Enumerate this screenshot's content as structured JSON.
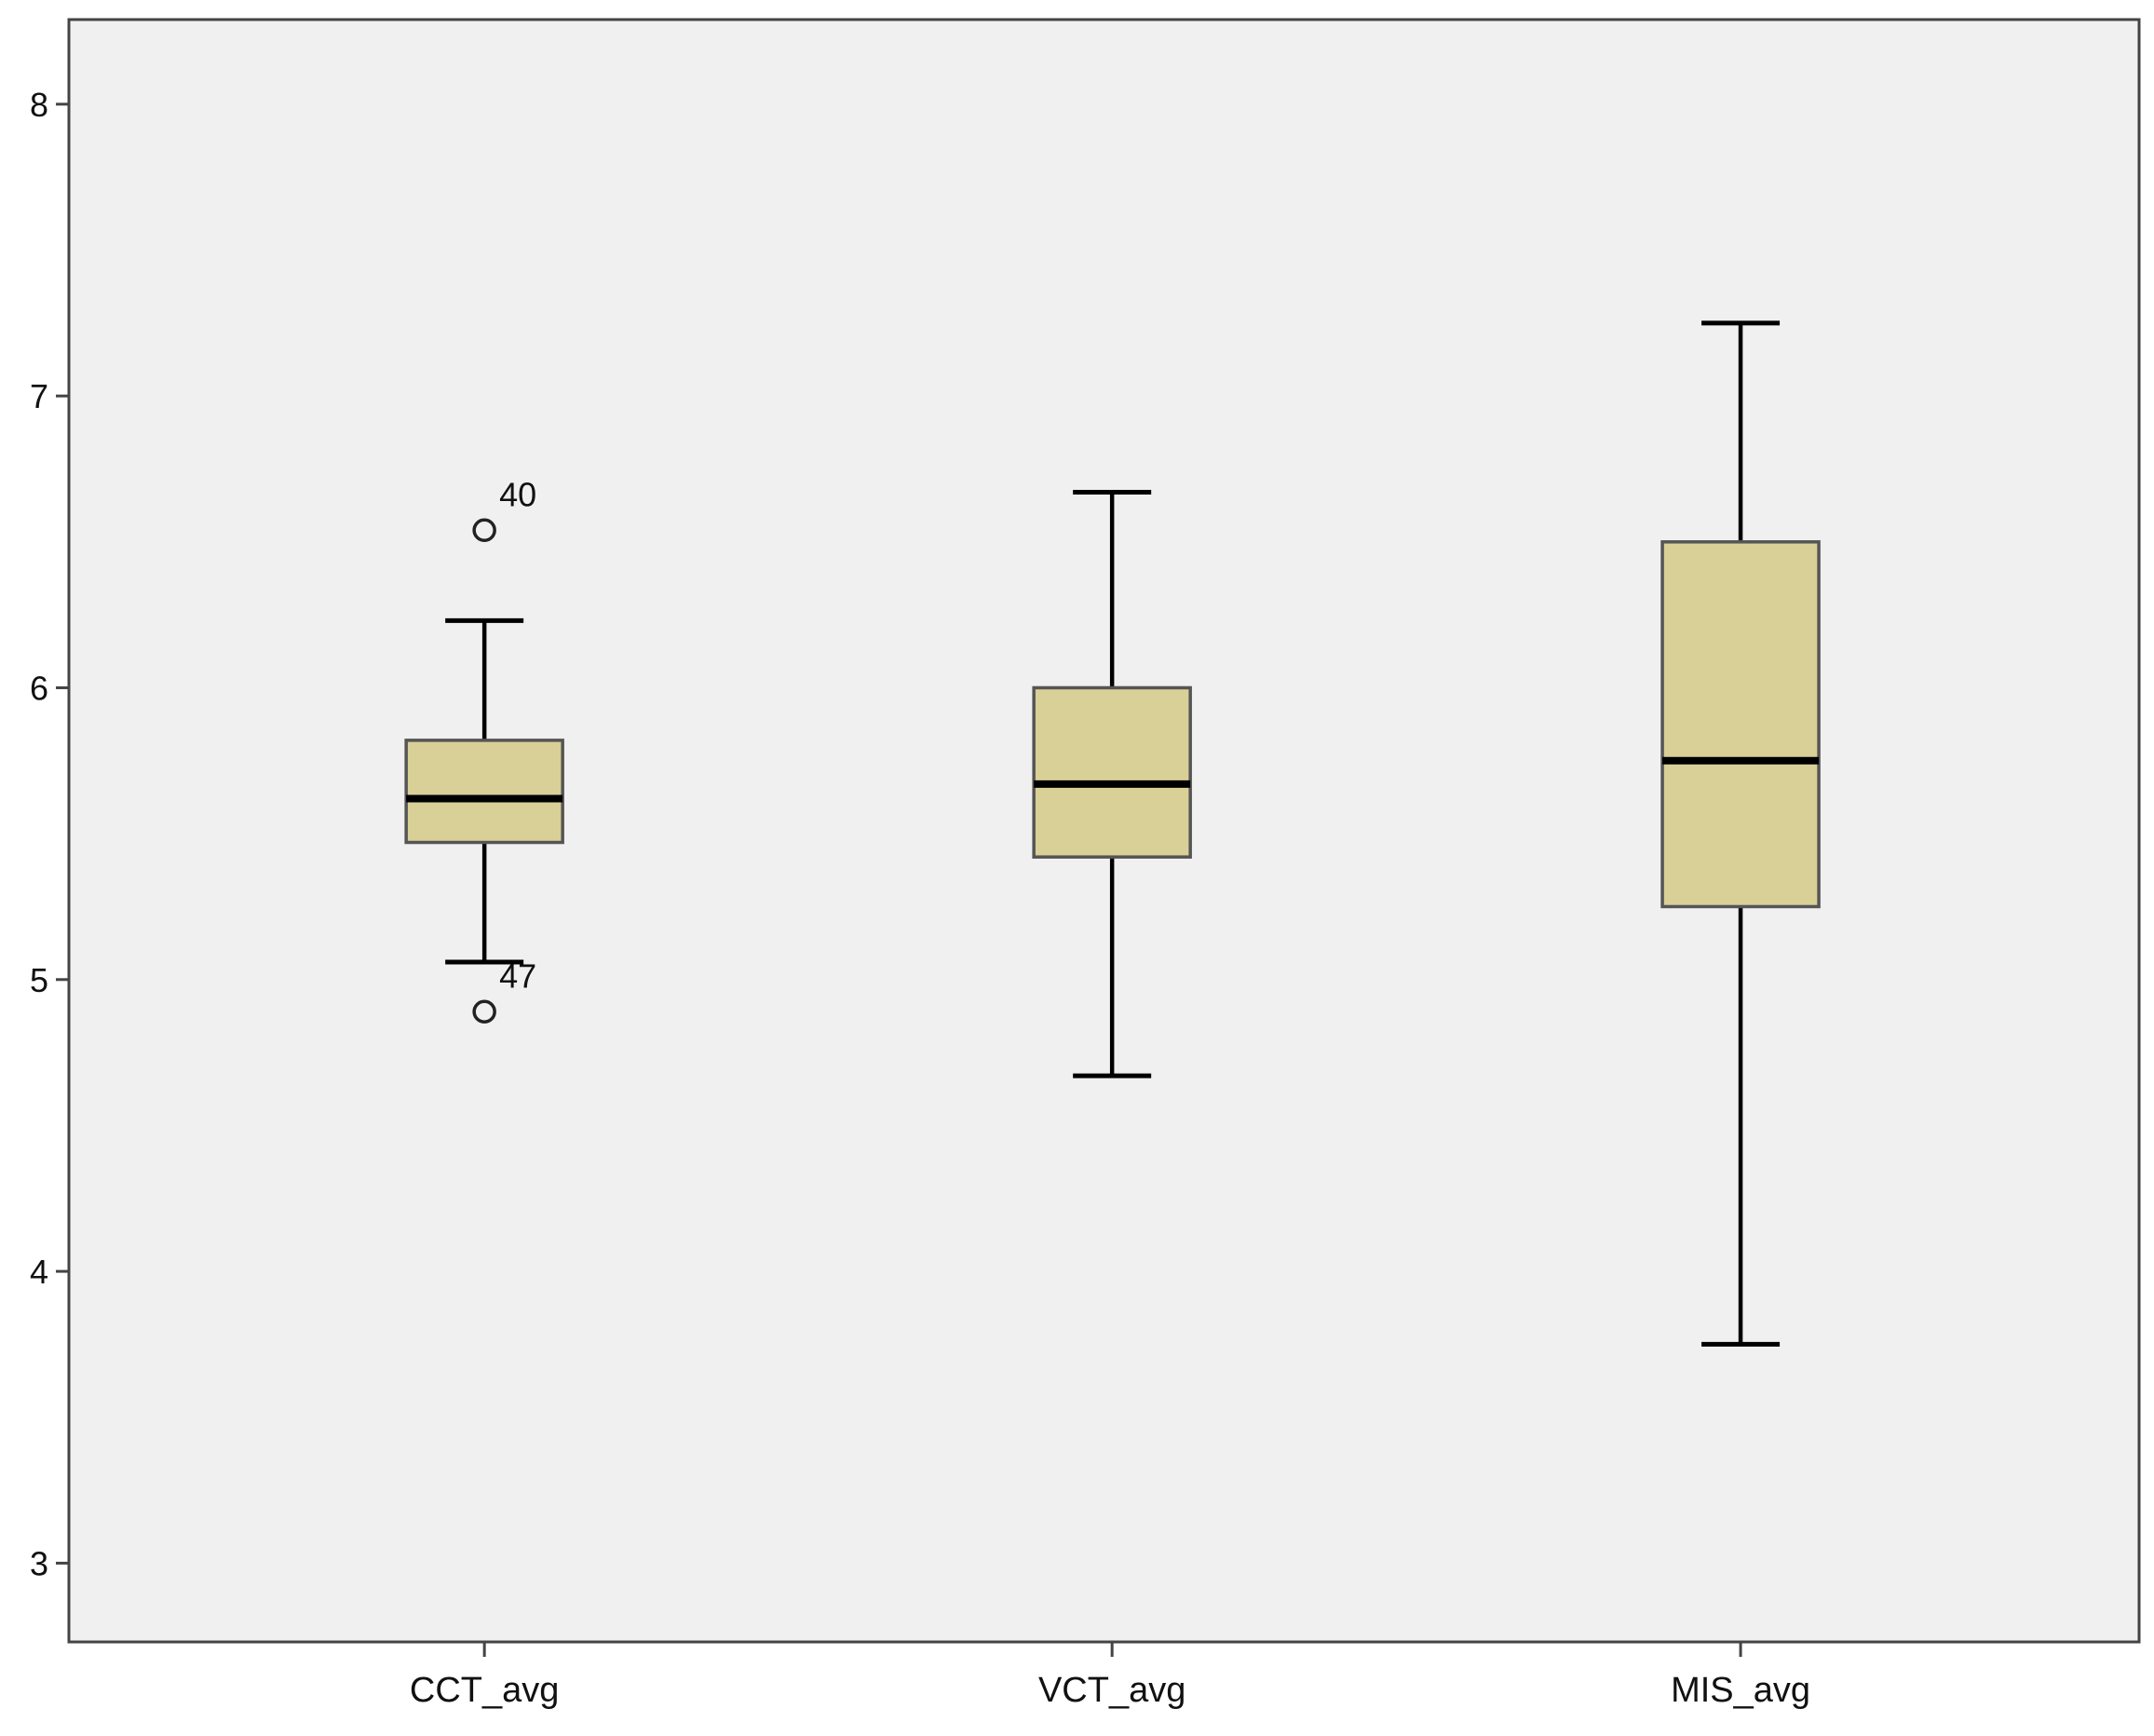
{
  "chart_data": {
    "type": "box",
    "title": "",
    "xlabel": "",
    "ylabel": "",
    "ylim": [
      2.73,
      8.29
    ],
    "y_ticks": [
      3,
      4,
      5,
      6,
      7,
      8
    ],
    "grid": false,
    "legend": "none",
    "colors": {
      "plot_background": "#f0f0f0",
      "box_fill": "#d8d097",
      "box_stroke": "#555555",
      "lines": "#000000",
      "frame": "#444444"
    },
    "categories": [
      "CCT_avg",
      "VCT_avg",
      "MIS_avg"
    ],
    "series": [
      {
        "category": "CCT_avg",
        "whisker_low": 5.06,
        "q1": 5.47,
        "median": 5.62,
        "q3": 5.82,
        "whisker_high": 6.23,
        "outliers": [
          {
            "value": 6.54,
            "label": "40"
          },
          {
            "value": 4.89,
            "label": "47"
          }
        ]
      },
      {
        "category": "VCT_avg",
        "whisker_low": 4.67,
        "q1": 5.42,
        "median": 5.67,
        "q3": 6.0,
        "whisker_high": 6.67,
        "outliers": []
      },
      {
        "category": "MIS_avg",
        "whisker_low": 3.75,
        "q1": 5.25,
        "median": 5.75,
        "q3": 6.5,
        "whisker_high": 7.25,
        "outliers": []
      }
    ]
  }
}
